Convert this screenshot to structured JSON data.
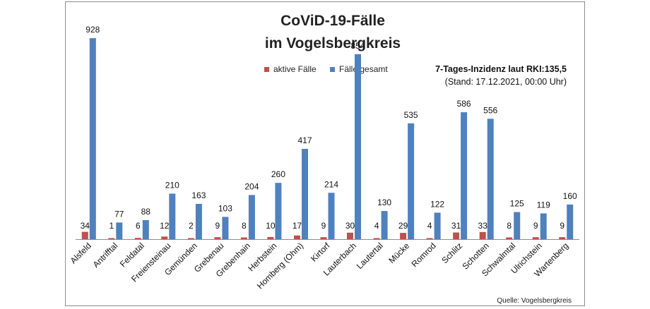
{
  "chart_data": {
    "type": "bar",
    "title": [
      "CoViD-19-Fälle",
      "im Vogelsbergkreis"
    ],
    "info": {
      "headline": "7-Tages-Inzidenz laut RKI:135,5",
      "stand": "(Stand: 17.12.2021, 00:00 Uhr)"
    },
    "source": "Quelle: Vogelsbergkreis",
    "categories": [
      "Alsfeld",
      "Antrifftal",
      "Feldatal",
      "Freiensteinau",
      "Gemünden",
      "Grebenau",
      "Grebenhain",
      "Herbstein",
      "Homberg (Ohm)",
      "Kirtorf",
      "Lauterbach",
      "Lautertal",
      "Mücke",
      "Romrod",
      "Schlitz",
      "Schotten",
      "Schwalmtal",
      "Ulrichstein",
      "Wartenberg"
    ],
    "series": [
      {
        "name": "aktive Fälle",
        "color": "#c0504d",
        "values": [
          34,
          1,
          6,
          12,
          2,
          9,
          8,
          10,
          17,
          9,
          30,
          4,
          29,
          4,
          31,
          33,
          8,
          9,
          9
        ]
      },
      {
        "name": "Fälle gesamt",
        "color": "#4f81bd",
        "values": [
          928,
          77,
          88,
          210,
          163,
          103,
          204,
          260,
          417,
          214,
          854,
          130,
          535,
          122,
          586,
          556,
          125,
          119,
          160
        ]
      }
    ],
    "ylim": [
      0,
      1000
    ],
    "grid": false,
    "legend_position": "top"
  }
}
